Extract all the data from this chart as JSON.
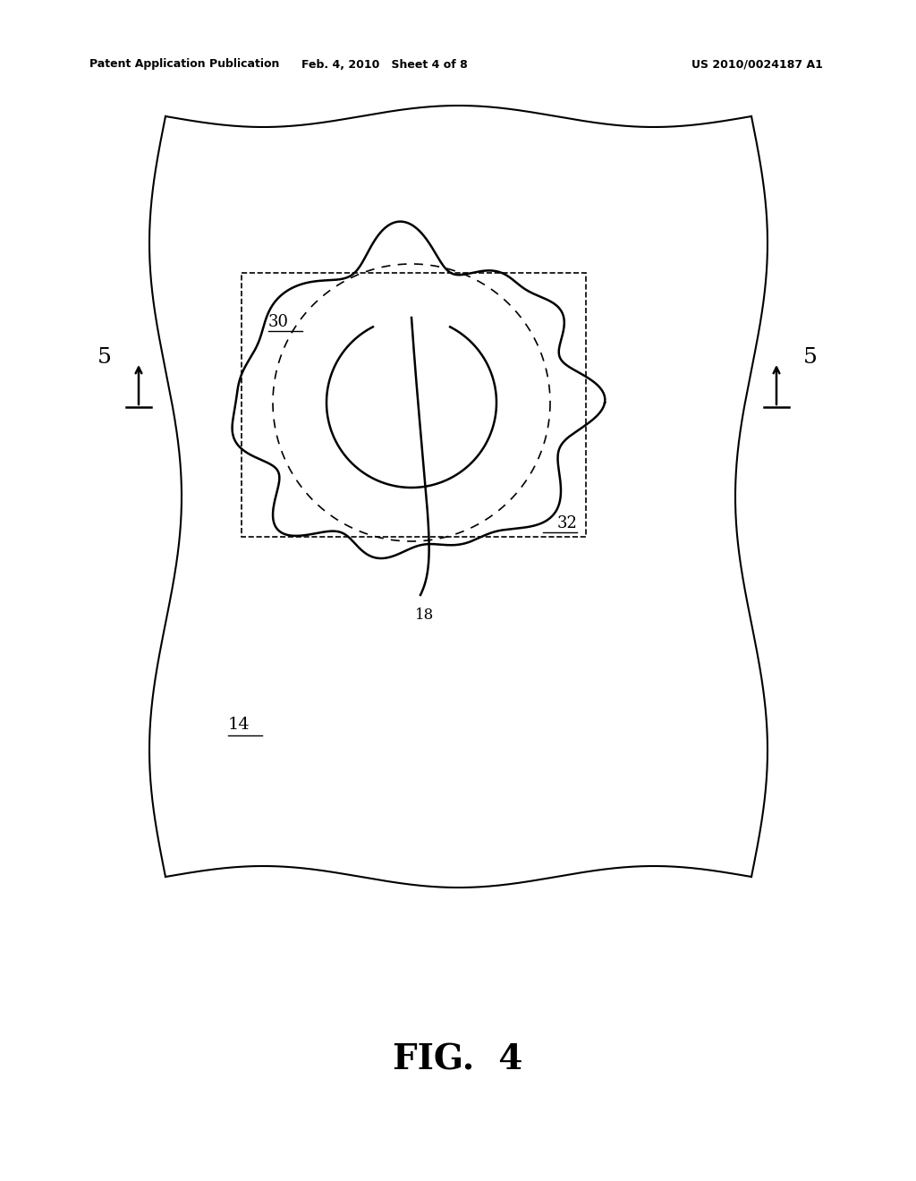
{
  "bg_color": "#ffffff",
  "text_color": "#000000",
  "header_left": "Patent Application Publication",
  "header_mid": "Feb. 4, 2010   Sheet 4 of 8",
  "header_right": "US 2010/0024187 A1",
  "fig_label": "FIG.  4",
  "label_14": "14",
  "label_18": "18",
  "label_30": "30",
  "label_32": "32",
  "label_5_left": "5",
  "label_5_right": "5"
}
